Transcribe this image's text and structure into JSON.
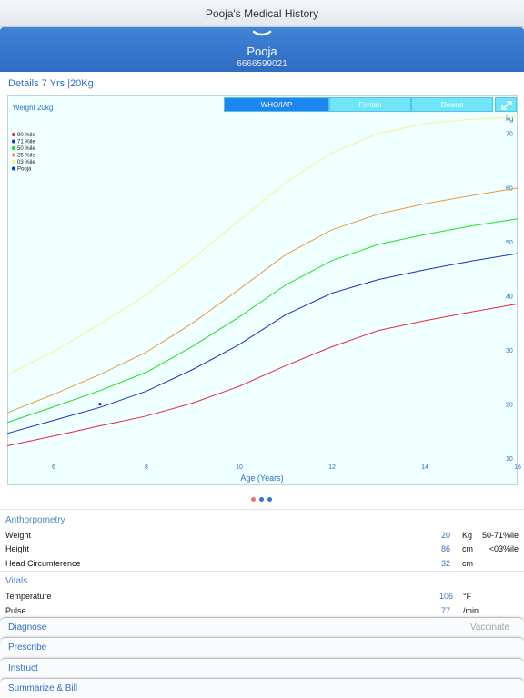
{
  "window": {
    "title": "Pooja's Medical History"
  },
  "patient": {
    "name": "Pooja",
    "phone": "6666599021"
  },
  "details": {
    "summary": "Details 7 Yrs  |20Kg"
  },
  "chart_tabs": [
    {
      "label": "WHO/IAP",
      "active": true
    },
    {
      "label": "Fenton",
      "active": false
    },
    {
      "label": "Downs",
      "active": false
    }
  ],
  "chart_data": {
    "type": "line",
    "title": "Weight 20kg",
    "xlabel": "Age (Years)",
    "ylabel": "kg",
    "xlim": [
      5,
      16
    ],
    "ylim": [
      5,
      77
    ],
    "x_ticks": [
      6,
      8,
      10,
      12,
      14,
      16
    ],
    "y_ticks": [
      10,
      20,
      30,
      40,
      50,
      60,
      70
    ],
    "legend_position": "top-left",
    "series": [
      {
        "name": "90 %ile",
        "color": "#e8283a",
        "x": [
          5,
          6,
          7,
          8,
          9,
          10,
          11,
          12,
          13,
          14,
          15,
          16
        ],
        "values": [
          12.3,
          14.1,
          16.0,
          17.8,
          20.2,
          23.3,
          27.1,
          30.6,
          33.6,
          35.4,
          37.0,
          38.5
        ]
      },
      {
        "name": "71 %ile",
        "color": "#1a2fd0",
        "x": [
          5,
          6,
          7,
          8,
          9,
          10,
          11,
          12,
          13,
          14,
          15,
          16
        ],
        "values": [
          14.6,
          17.0,
          19.4,
          22.4,
          26.4,
          31.0,
          36.5,
          40.5,
          43.0,
          44.8,
          46.4,
          47.8
        ]
      },
      {
        "name": "50 %ile",
        "color": "#22dd22",
        "x": [
          5,
          6,
          7,
          8,
          9,
          10,
          11,
          12,
          13,
          14,
          15,
          16
        ],
        "values": [
          16.6,
          19.5,
          22.5,
          25.9,
          30.7,
          36.1,
          42.0,
          46.5,
          49.5,
          51.3,
          52.9,
          54.2
        ]
      },
      {
        "name": "25 %ile",
        "color": "#e99b3e",
        "x": [
          5,
          6,
          7,
          8,
          9,
          10,
          11,
          12,
          13,
          14,
          15,
          16
        ],
        "values": [
          18.4,
          21.8,
          25.5,
          29.6,
          35.0,
          41.2,
          47.6,
          52.2,
          55.1,
          57.0,
          58.5,
          59.9
        ]
      },
      {
        "name": "03 %ile",
        "color": "#f5f582",
        "x": [
          5,
          6,
          7,
          8,
          9,
          10,
          11,
          12,
          13,
          14,
          15,
          16
        ],
        "values": [
          25.4,
          29.7,
          34.8,
          40.2,
          46.9,
          53.9,
          60.9,
          66.4,
          70.0,
          71.8,
          72.6,
          73.0
        ]
      }
    ],
    "patient_point": {
      "name": "Pooja",
      "color": "#1a2fd0",
      "x": 7,
      "y": 20
    }
  },
  "page_dots": [
    "#f0706e",
    "#3a74c8",
    "#3a74c8"
  ],
  "anthropometry": {
    "title": "Anthorpometry",
    "rows": [
      {
        "label": "Weight",
        "value": "20",
        "unit": "Kg",
        "pct": "50-71%ile"
      },
      {
        "label": "Height",
        "value": "86",
        "unit": "cm",
        "pct": "<03%ile"
      },
      {
        "label": "Head Circumference",
        "value": "32",
        "unit": "cm",
        "pct": ""
      }
    ]
  },
  "vitals": {
    "title": "Vitals",
    "rows": [
      {
        "label": "Temperature",
        "value": "106",
        "unit": "°F"
      },
      {
        "label": "Pulse",
        "value": "77",
        "unit": "/min"
      }
    ]
  },
  "actions": {
    "diagnose": "Diagnose",
    "vaccinate": "Vaccinate",
    "prescribe": "Prescribe",
    "instruct": "Instruct",
    "summarize": "Summarize & Bill"
  }
}
